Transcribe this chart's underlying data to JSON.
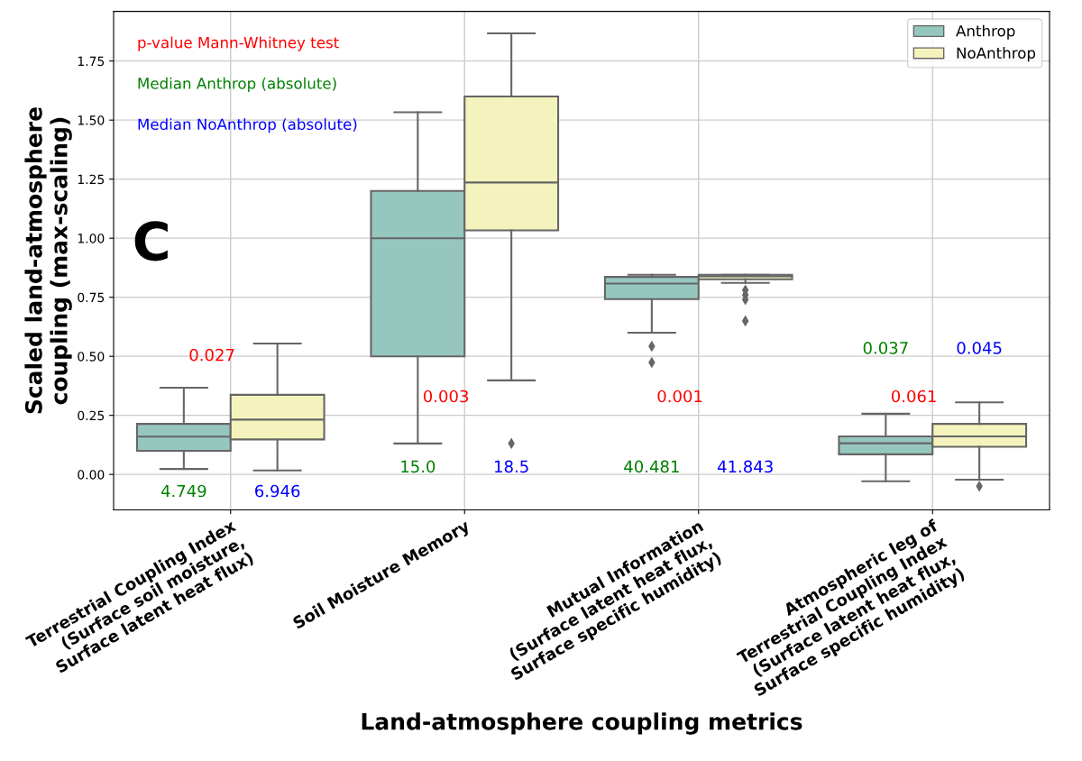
{
  "chart_data": {
    "type": "box",
    "xlabel": "Land-atmosphere coupling metrics",
    "ylabel": "Scaled land-atmosphere\ncoupling (max-scaling)",
    "categories": [
      "Terrestrial Coupling Index\n(Surface soil moisture,\nSurface latent heat flux)",
      "Soil Moisture Memory",
      "Mutual Information\n(Surface latent heat flux,\nSurface specific humidity)",
      "Atmospheric leg of\nTerrestrial Coupling Index\n(Surface latent heat flux,\nSurface specific humidity)"
    ],
    "series": [
      {
        "name": "Anthrop",
        "color": "#96c7bf",
        "boxes": [
          {
            "low": 0.023,
            "q1": 0.1,
            "median": 0.16,
            "q3": 0.214,
            "high": 0.367
          },
          {
            "low": 0.131,
            "q1": 0.5,
            "median": 1.0,
            "q3": 1.2,
            "high": 1.533
          },
          {
            "low": 0.6,
            "q1": 0.742,
            "median": 0.808,
            "q3": 0.836,
            "high": 0.845,
            "outliers": [
              0.543,
              0.474
            ]
          },
          {
            "low": -0.029,
            "q1": 0.085,
            "median": 0.132,
            "q3": 0.161,
            "high": 0.257
          }
        ]
      },
      {
        "name": "NoAnthrop",
        "color": "#f5f3bd",
        "boxes": [
          {
            "low": 0.017,
            "q1": 0.148,
            "median": 0.232,
            "q3": 0.337,
            "high": 0.554
          },
          {
            "low": 0.398,
            "q1": 1.033,
            "median": 1.236,
            "q3": 1.6,
            "high": 1.867,
            "outliers": [
              0.131
            ]
          },
          {
            "low": 0.811,
            "q1": 0.826,
            "median": 0.839,
            "q3": 0.845,
            "high": 0.845,
            "outliers": [
              0.78,
              0.76,
              0.74,
              0.65
            ]
          },
          {
            "low": -0.022,
            "q1": 0.117,
            "median": 0.161,
            "q3": 0.214,
            "high": 0.305,
            "outliers": [
              -0.05
            ]
          }
        ]
      }
    ],
    "ylim": [
      -0.15,
      1.96
    ],
    "yticks": [
      {
        "value": 0,
        "label": "0.00"
      },
      {
        "value": 0.25,
        "label": "0.25"
      },
      {
        "value": 0.5,
        "label": "0.50"
      },
      {
        "value": 0.75,
        "label": "0.75"
      },
      {
        "value": 1.0,
        "label": "1.00"
      },
      {
        "value": 1.25,
        "label": "1.25"
      },
      {
        "value": 1.5,
        "label": "1.50"
      },
      {
        "value": 1.75,
        "label": "1.75"
      }
    ],
    "grid": true,
    "legend": "top right",
    "annotations": [
      "p-value Mann-Whitney test",
      "Median Anthrop (absolute)",
      "Median NoAnthrop (absolute)",
      "C",
      "0.027",
      "4.749",
      "6.946",
      "0.003",
      "15.0",
      "18.5",
      "0.001",
      "40.481",
      "41.843",
      "0.061",
      "0.037",
      "0.045"
    ]
  }
}
